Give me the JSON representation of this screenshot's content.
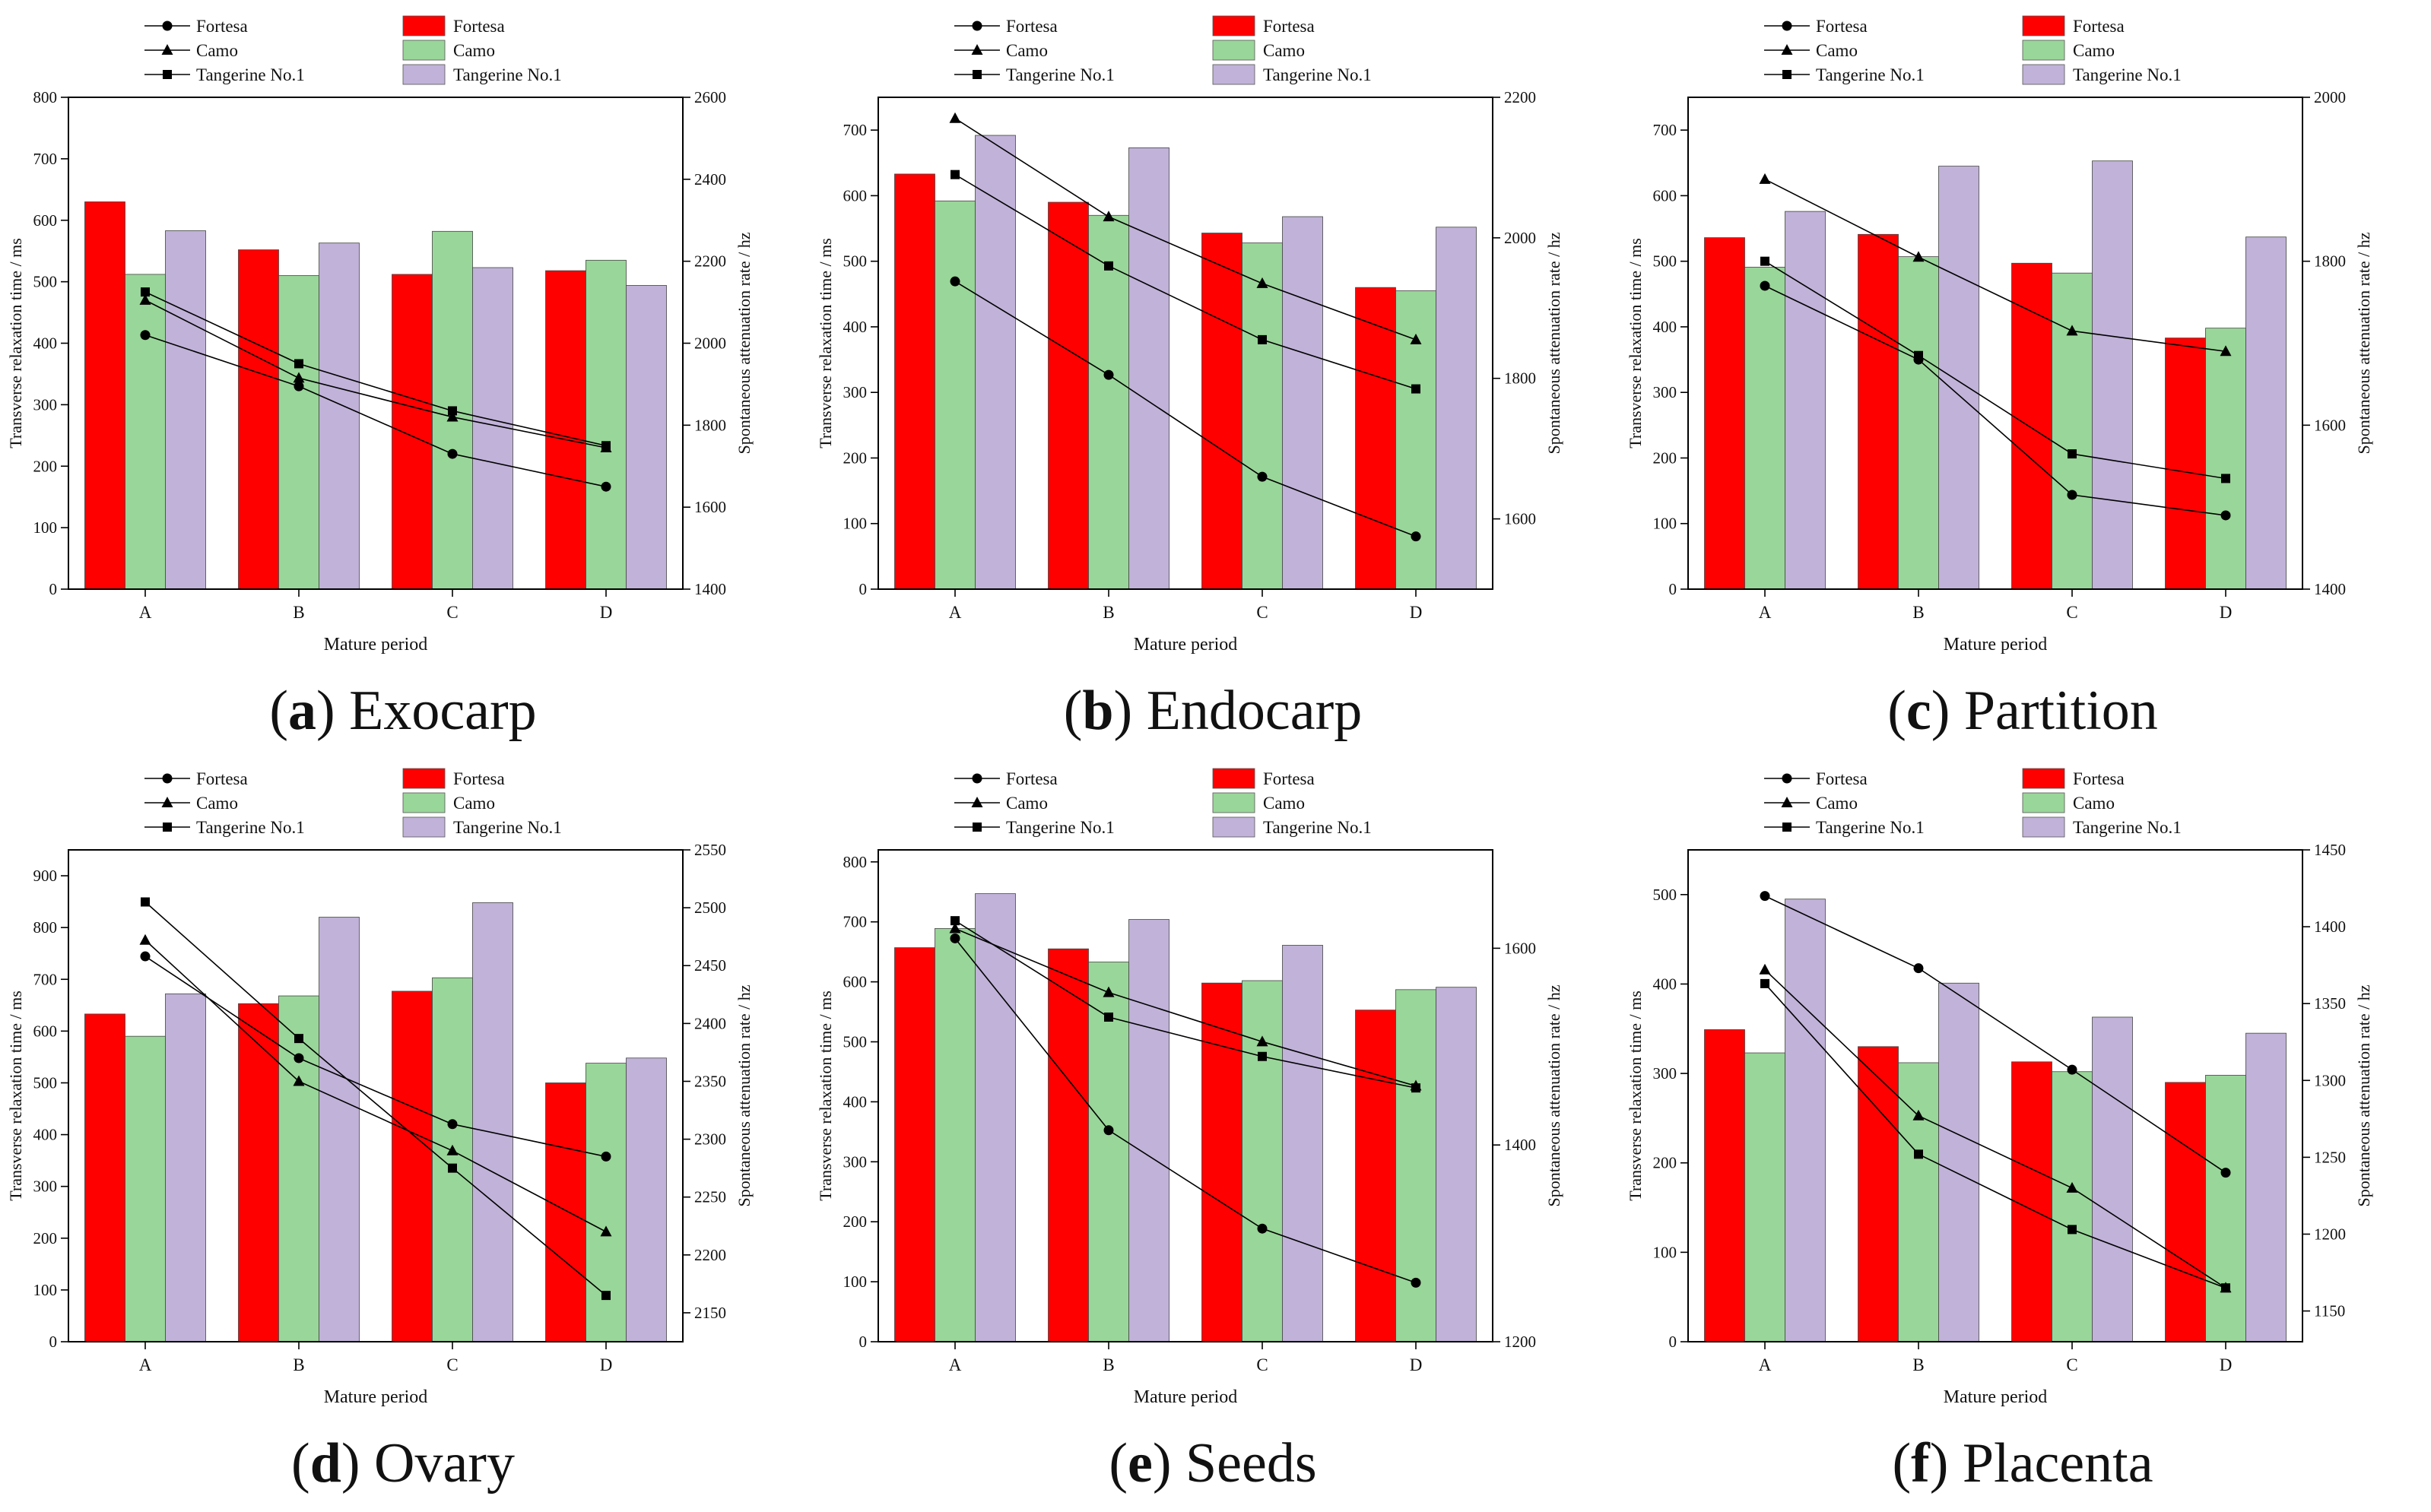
{
  "figure": {
    "legend": {
      "line_entries": [
        "Fortesa",
        "Camo",
        "Tangerine No.1"
      ],
      "bar_entries": [
        "Fortesa",
        "Camo",
        "Tangerine No.1"
      ]
    },
    "colors": {
      "fortesa_bar": "#ff0000",
      "camo_bar": "#99d699",
      "tangerine_bar": "#c0b2d8",
      "line": "#000000"
    },
    "markers": {
      "Fortesa": "circle",
      "Camo": "triangle",
      "Tangerine No.1": "square"
    }
  },
  "chart_data": [
    {
      "id": "a",
      "letter": "a",
      "name": "Exocarp",
      "type": "bar",
      "xlabel": "Mature period",
      "ylabel": "Transverse relaxation time / ms",
      "y2label": "Spontaneous attenuation rate / hz",
      "categories": [
        "A",
        "B",
        "C",
        "D"
      ],
      "ylim": [
        0,
        800
      ],
      "yticks": [
        0,
        100,
        200,
        300,
        400,
        500,
        600,
        700,
        800
      ],
      "y2lim": [
        1400,
        2600
      ],
      "y2ticks": [
        1400,
        1600,
        1800,
        2000,
        2200,
        2400,
        2600
      ],
      "bar_series": [
        {
          "name": "Fortesa",
          "values": [
            630,
            552,
            512,
            518
          ]
        },
        {
          "name": "Camo",
          "values": [
            512,
            510,
            582,
            535
          ]
        },
        {
          "name": "Tangerine No.1",
          "values": [
            583,
            563,
            523,
            494
          ]
        }
      ],
      "line_series": [
        {
          "name": "Fortesa",
          "values": [
            2020,
            1895,
            1730,
            1650
          ]
        },
        {
          "name": "Camo",
          "values": [
            2105,
            1915,
            1820,
            1745
          ]
        },
        {
          "name": "Tangerine No.1",
          "values": [
            2125,
            1950,
            1835,
            1750
          ]
        }
      ]
    },
    {
      "id": "b",
      "letter": "b",
      "name": "Endocarp",
      "type": "bar",
      "xlabel": "Mature period",
      "ylabel": "Transverse relaxation time / ms",
      "y2label": "Spontaneous attenuation rate / hz",
      "categories": [
        "A",
        "B",
        "C",
        "D"
      ],
      "ylim": [
        0,
        750
      ],
      "yticks": [
        0,
        100,
        200,
        300,
        400,
        500,
        600,
        700
      ],
      "y2lim": [
        1500,
        2200
      ],
      "y2ticks": [
        1600,
        1800,
        2000,
        2200
      ],
      "bar_series": [
        {
          "name": "Fortesa",
          "values": [
            633,
            590,
            543,
            460
          ]
        },
        {
          "name": "Camo",
          "values": [
            592,
            570,
            528,
            455
          ]
        },
        {
          "name": "Tangerine No.1",
          "values": [
            692,
            673,
            568,
            552
          ]
        }
      ],
      "line_series": [
        {
          "name": "Fortesa",
          "values": [
            1938,
            1805,
            1660,
            1575
          ]
        },
        {
          "name": "Camo",
          "values": [
            2170,
            2030,
            1935,
            1855
          ]
        },
        {
          "name": "Tangerine No.1",
          "values": [
            2090,
            1960,
            1855,
            1785
          ]
        }
      ]
    },
    {
      "id": "c",
      "letter": "c",
      "name": "Partition",
      "type": "bar",
      "xlabel": "Mature period",
      "ylabel": "Transverse relaxation time / ms",
      "y2label": "Spontaneous attenuation rate / hz",
      "categories": [
        "A",
        "B",
        "C",
        "D"
      ],
      "ylim": [
        0,
        750
      ],
      "yticks": [
        0,
        100,
        200,
        300,
        400,
        500,
        600,
        700
      ],
      "y2lim": [
        1400,
        2000
      ],
      "y2ticks": [
        1400,
        1600,
        1800,
        2000
      ],
      "bar_series": [
        {
          "name": "Fortesa",
          "values": [
            536,
            541,
            497,
            383
          ]
        },
        {
          "name": "Camo",
          "values": [
            491,
            507,
            482,
            398
          ]
        },
        {
          "name": "Tangerine No.1",
          "values": [
            576,
            645,
            653,
            537
          ]
        }
      ],
      "line_series": [
        {
          "name": "Fortesa",
          "values": [
            1770,
            1680,
            1515,
            1490
          ]
        },
        {
          "name": "Camo",
          "values": [
            1900,
            1805,
            1715,
            1690
          ]
        },
        {
          "name": "Tangerine No.1",
          "values": [
            1800,
            1685,
            1565,
            1535
          ]
        }
      ]
    },
    {
      "id": "d",
      "letter": "d",
      "name": "Ovary",
      "type": "bar",
      "xlabel": "Mature period",
      "ylabel": "Transverse relaxation time / ms",
      "y2label": "Spontaneous attenuation rate / hz",
      "categories": [
        "A",
        "B",
        "C",
        "D"
      ],
      "ylim": [
        0,
        950
      ],
      "yticks": [
        0,
        100,
        200,
        300,
        400,
        500,
        600,
        700,
        800,
        900
      ],
      "y2lim": [
        2125,
        2550
      ],
      "y2ticks": [
        2150,
        2200,
        2250,
        2300,
        2350,
        2400,
        2450,
        2500,
        2550
      ],
      "bar_series": [
        {
          "name": "Fortesa",
          "values": [
            633,
            653,
            677,
            500
          ]
        },
        {
          "name": "Camo",
          "values": [
            590,
            668,
            703,
            538
          ]
        },
        {
          "name": "Tangerine No.1",
          "values": [
            672,
            820,
            848,
            548
          ]
        }
      ],
      "line_series": [
        {
          "name": "Fortesa",
          "values": [
            2458,
            2370,
            2313,
            2285
          ]
        },
        {
          "name": "Camo",
          "values": [
            2472,
            2350,
            2290,
            2220
          ]
        },
        {
          "name": "Tangerine No.1",
          "values": [
            2505,
            2387,
            2275,
            2165
          ]
        }
      ]
    },
    {
      "id": "e",
      "letter": "e",
      "name": "Seeds",
      "type": "bar",
      "xlabel": "Mature period",
      "ylabel": "Transverse relaxation time / ms",
      "y2label": "Spontaneous attenuation rate / hz",
      "categories": [
        "A",
        "B",
        "C",
        "D"
      ],
      "ylim": [
        0,
        820
      ],
      "yticks": [
        0,
        100,
        200,
        300,
        400,
        500,
        600,
        700,
        800
      ],
      "y2lim": [
        1200,
        1700
      ],
      "y2ticks": [
        1200,
        1400,
        1600
      ],
      "bar_series": [
        {
          "name": "Fortesa",
          "values": [
            657,
            655,
            598,
            553
          ]
        },
        {
          "name": "Camo",
          "values": [
            689,
            633,
            602,
            587
          ]
        },
        {
          "name": "Tangerine No.1",
          "values": [
            747,
            704,
            661,
            591
          ]
        }
      ],
      "line_series": [
        {
          "name": "Fortesa",
          "values": [
            1610,
            1415,
            1315,
            1260
          ]
        },
        {
          "name": "Camo",
          "values": [
            1620,
            1555,
            1505,
            1460
          ]
        },
        {
          "name": "Tangerine No.1",
          "values": [
            1628,
            1530,
            1490,
            1458
          ]
        }
      ]
    },
    {
      "id": "f",
      "letter": "f",
      "name": "Placenta",
      "type": "bar",
      "xlabel": "Mature period",
      "ylabel": "Transverse relaxation time / ms",
      "y2label": "Spontaneous attenuation rate / hz",
      "categories": [
        "A",
        "B",
        "C",
        "D"
      ],
      "ylim": [
        0,
        550
      ],
      "yticks": [
        0,
        100,
        200,
        300,
        400,
        500
      ],
      "y2lim": [
        1130,
        1450
      ],
      "y2ticks": [
        1150,
        1200,
        1250,
        1300,
        1350,
        1400,
        1450
      ],
      "bar_series": [
        {
          "name": "Fortesa",
          "values": [
            349,
            330,
            313,
            290
          ]
        },
        {
          "name": "Camo",
          "values": [
            323,
            312,
            302,
            298
          ]
        },
        {
          "name": "Tangerine No.1",
          "values": [
            495,
            401,
            363,
            345
          ]
        }
      ],
      "line_series": [
        {
          "name": "Fortesa",
          "values": [
            1420,
            1373,
            1307,
            1240
          ]
        },
        {
          "name": "Camo",
          "values": [
            1372,
            1277,
            1230,
            1165
          ]
        },
        {
          "name": "Tangerine No.1",
          "values": [
            1363,
            1252,
            1203,
            1165
          ]
        }
      ]
    }
  ]
}
